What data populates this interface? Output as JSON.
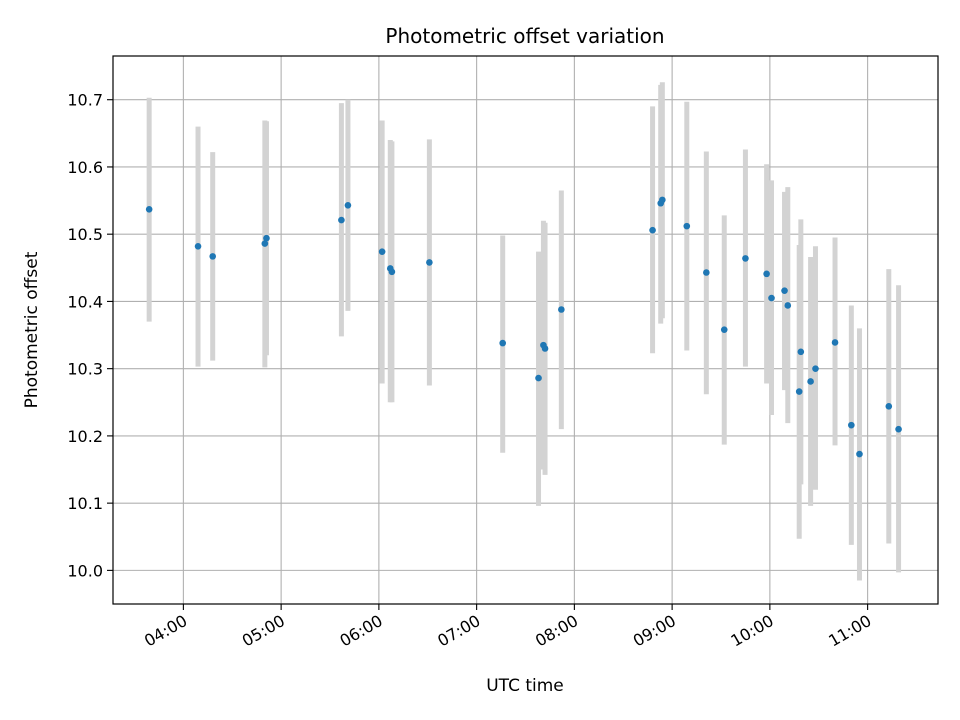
{
  "chart_data": {
    "type": "scatter",
    "title": "Photometric offset variation",
    "xlabel": "UTC time",
    "ylabel": "Photometric offset",
    "x_tick_labels": [
      "04:00",
      "05:00",
      "06:00",
      "07:00",
      "08:00",
      "09:00",
      "10:00",
      "11:00"
    ],
    "x_tick_hours": [
      4,
      5,
      6,
      7,
      8,
      9,
      10,
      11
    ],
    "y_tick_labels": [
      "10.0",
      "10.1",
      "10.2",
      "10.3",
      "10.4",
      "10.5",
      "10.6",
      "10.7"
    ],
    "y_tick_values": [
      10.0,
      10.1,
      10.2,
      10.3,
      10.4,
      10.5,
      10.6,
      10.7
    ],
    "xlim_hours": [
      3.28,
      11.72
    ],
    "ylim": [
      9.95,
      10.765
    ],
    "grid": true,
    "point_color": "#1f77b4",
    "errorbar_color": "#d3d3d3",
    "series": [
      {
        "points": [
          {
            "t": "03:39",
            "y": 10.537,
            "lo": 10.37,
            "hi": 10.703
          },
          {
            "t": "04:09",
            "y": 10.482,
            "lo": 10.303,
            "hi": 10.66
          },
          {
            "t": "04:18",
            "y": 10.467,
            "lo": 10.312,
            "hi": 10.622
          },
          {
            "t": "04:50",
            "y": 10.486,
            "lo": 10.302,
            "hi": 10.669
          },
          {
            "t": "04:51",
            "y": 10.494,
            "lo": 10.32,
            "hi": 10.668
          },
          {
            "t": "05:37",
            "y": 10.521,
            "lo": 10.348,
            "hi": 10.695
          },
          {
            "t": "05:41",
            "y": 10.543,
            "lo": 10.386,
            "hi": 10.7
          },
          {
            "t": "06:02",
            "y": 10.474,
            "lo": 10.278,
            "hi": 10.669
          },
          {
            "t": "06:07",
            "y": 10.449,
            "lo": 10.25,
            "hi": 10.64
          },
          {
            "t": "06:08",
            "y": 10.444,
            "lo": 10.25,
            "hi": 10.638
          },
          {
            "t": "06:31",
            "y": 10.458,
            "lo": 10.275,
            "hi": 10.641
          },
          {
            "t": "07:16",
            "y": 10.338,
            "lo": 10.175,
            "hi": 10.498
          },
          {
            "t": "07:38",
            "y": 10.286,
            "lo": 10.096,
            "hi": 10.474
          },
          {
            "t": "07:41",
            "y": 10.335,
            "lo": 10.15,
            "hi": 10.52
          },
          {
            "t": "07:42",
            "y": 10.33,
            "lo": 10.142,
            "hi": 10.517
          },
          {
            "t": "07:52",
            "y": 10.388,
            "lo": 10.21,
            "hi": 10.565
          },
          {
            "t": "08:48",
            "y": 10.506,
            "lo": 10.323,
            "hi": 10.69
          },
          {
            "t": "08:53",
            "y": 10.546,
            "lo": 10.367,
            "hi": 10.722
          },
          {
            "t": "08:54",
            "y": 10.551,
            "lo": 10.375,
            "hi": 10.726
          },
          {
            "t": "09:09",
            "y": 10.512,
            "lo": 10.327,
            "hi": 10.697
          },
          {
            "t": "09:21",
            "y": 10.443,
            "lo": 10.262,
            "hi": 10.623
          },
          {
            "t": "09:32",
            "y": 10.358,
            "lo": 10.187,
            "hi": 10.528
          },
          {
            "t": "09:45",
            "y": 10.464,
            "lo": 10.303,
            "hi": 10.626
          },
          {
            "t": "09:58",
            "y": 10.441,
            "lo": 10.278,
            "hi": 10.604
          },
          {
            "t": "10:01",
            "y": 10.405,
            "lo": 10.231,
            "hi": 10.58
          },
          {
            "t": "10:09",
            "y": 10.416,
            "lo": 10.268,
            "hi": 10.563
          },
          {
            "t": "10:11",
            "y": 10.394,
            "lo": 10.219,
            "hi": 10.57
          },
          {
            "t": "10:18",
            "y": 10.266,
            "lo": 10.047,
            "hi": 10.484
          },
          {
            "t": "10:19",
            "y": 10.325,
            "lo": 10.128,
            "hi": 10.522
          },
          {
            "t": "10:25",
            "y": 10.281,
            "lo": 10.096,
            "hi": 10.466
          },
          {
            "t": "10:28",
            "y": 10.3,
            "lo": 10.12,
            "hi": 10.482
          },
          {
            "t": "10:40",
            "y": 10.339,
            "lo": 10.186,
            "hi": 10.495
          },
          {
            "t": "10:50",
            "y": 10.216,
            "lo": 10.038,
            "hi": 10.394
          },
          {
            "t": "10:55",
            "y": 10.173,
            "lo": 9.985,
            "hi": 10.36
          },
          {
            "t": "11:13",
            "y": 10.244,
            "lo": 10.04,
            "hi": 10.448
          },
          {
            "t": "11:19",
            "y": 10.21,
            "lo": 9.997,
            "hi": 10.424
          }
        ]
      }
    ]
  }
}
